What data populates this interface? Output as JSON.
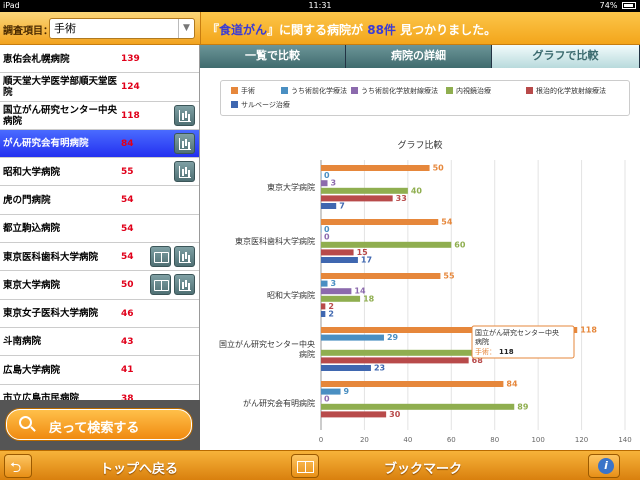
{
  "status_bar": {
    "device": "iPad",
    "time": "11:31",
    "battery": "74%"
  },
  "search": {
    "label": "調査項目：",
    "selected_value": "手術"
  },
  "header_message": {
    "prefix": "『",
    "keyword": "食道がん",
    "middle": "』に関する病院が ",
    "count": "88件",
    "suffix": " 見つかりました。"
  },
  "hospitals": [
    {
      "name": "恵佑会札幌病院",
      "count": "139",
      "book": false,
      "chart": false,
      "selected": false
    },
    {
      "name": "順天堂大学医学部順天堂医院",
      "count": "124",
      "book": false,
      "chart": false,
      "selected": false
    },
    {
      "name": "国立がん研究センター中央病院",
      "count": "118",
      "book": false,
      "chart": true,
      "selected": false
    },
    {
      "name": "がん研究会有明病院",
      "count": "84",
      "book": false,
      "chart": true,
      "selected": true
    },
    {
      "name": "昭和大学病院",
      "count": "55",
      "book": false,
      "chart": true,
      "selected": false
    },
    {
      "name": "虎の門病院",
      "count": "54",
      "book": false,
      "chart": false,
      "selected": false
    },
    {
      "name": "都立駒込病院",
      "count": "54",
      "book": false,
      "chart": false,
      "selected": false
    },
    {
      "name": "東京医科歯科大学病院",
      "count": "54",
      "book": true,
      "chart": true,
      "selected": false
    },
    {
      "name": "東京大学病院",
      "count": "50",
      "book": true,
      "chart": true,
      "selected": false
    },
    {
      "name": "東京女子医科大学病院",
      "count": "46",
      "book": false,
      "chart": false,
      "selected": false
    },
    {
      "name": "斗南病院",
      "count": "43",
      "book": false,
      "chart": false,
      "selected": false
    },
    {
      "name": "広島大学病院",
      "count": "41",
      "book": false,
      "chart": false,
      "selected": false
    },
    {
      "name": "市立広島市民病院",
      "count": "38",
      "book": false,
      "chart": false,
      "selected": false
    }
  ],
  "back_button": {
    "label": "戻って検索する"
  },
  "tabs": [
    {
      "label": "一覧で比較",
      "active": false
    },
    {
      "label": "病院の詳細",
      "active": false
    },
    {
      "label": "グラフで比較",
      "active": true
    }
  ],
  "bottom_bar": {
    "top_label": "トップへ戻る",
    "bookmark_label": "ブックマーク"
  },
  "colors": {
    "surgery": "#e6873b",
    "pre_chemo": "#4a8fc2",
    "pre_chemoradio": "#8c6aad",
    "endoscopic": "#8fae4f",
    "definitive_chemoradio": "#b84a4a",
    "salvage": "#3f67b0"
  },
  "tooltip": {
    "hospital": "国立がん研究センター中央病院",
    "series": "手術：",
    "value": "118"
  },
  "chart_data": {
    "type": "bar",
    "orientation": "horizontal",
    "title": "グラフ比較",
    "categories": [
      "東京大学病院",
      "東京医科歯科大学病院",
      "昭和大学病院",
      "国立がん研究センター中央病院",
      "がん研究会有明病院"
    ],
    "series": [
      {
        "name": "手術",
        "color": "#e6873b",
        "values": [
          50,
          54,
          55,
          118,
          84
        ]
      },
      {
        "name": "うち術前化学療法",
        "color": "#4a8fc2",
        "values": [
          0,
          0,
          3,
          29,
          9
        ]
      },
      {
        "name": "うち術前化学放射線療法",
        "color": "#8c6aad",
        "values": [
          3,
          0,
          14,
          null,
          0
        ]
      },
      {
        "name": "内視鏡治療",
        "color": "#8fae4f",
        "values": [
          40,
          60,
          18,
          102,
          89
        ]
      },
      {
        "name": "根治的化学放射線療法",
        "color": "#b84a4a",
        "values": [
          33,
          15,
          2,
          68,
          30
        ]
      },
      {
        "name": "サルベージ治療",
        "color": "#3f67b0",
        "values": [
          7,
          17,
          2,
          23,
          null
        ]
      }
    ],
    "xlim": [
      0,
      140
    ],
    "xticks": [
      0,
      20,
      40,
      60,
      80,
      100,
      120,
      140
    ],
    "grid": true,
    "legend": "top"
  }
}
